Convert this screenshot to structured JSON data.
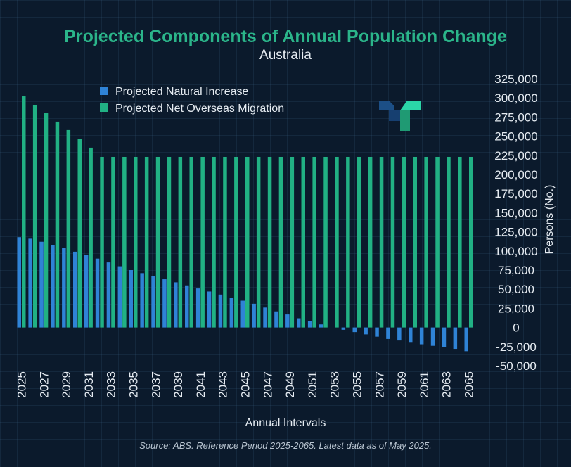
{
  "colors": {
    "natural_increase": "#2f83d6",
    "net_overseas_migration": "#21b184",
    "title": "#2bb58a",
    "background": "#0b1a2c",
    "text": "#e6ecf2"
  },
  "chart_data": {
    "type": "bar",
    "title": "Projected Components of Annual Population Change",
    "subtitle": "Australia",
    "xlabel": "Annual Intervals",
    "ylabel": "Persons (No.)",
    "ylim": [
      -50000,
      325000
    ],
    "yticks": [
      325000,
      300000,
      275000,
      250000,
      225000,
      200000,
      175000,
      150000,
      125000,
      100000,
      75000,
      50000,
      25000,
      0,
      -25000,
      -50000
    ],
    "ytick_labels": [
      "325,000",
      "300,000",
      "275,000",
      "250,000",
      "225,000",
      "200,000",
      "175,000",
      "150,000",
      "125,000",
      "100,000",
      "75,000",
      "50,000",
      "25,000",
      "0",
      "-25,000",
      "-50,000"
    ],
    "categories": [
      2025,
      2026,
      2027,
      2028,
      2029,
      2030,
      2031,
      2032,
      2033,
      2034,
      2035,
      2036,
      2037,
      2038,
      2039,
      2040,
      2041,
      2042,
      2043,
      2044,
      2045,
      2046,
      2047,
      2048,
      2049,
      2050,
      2051,
      2052,
      2053,
      2054,
      2055,
      2056,
      2057,
      2058,
      2059,
      2060,
      2061,
      2062,
      2063,
      2064,
      2065
    ],
    "xtick_labels": [
      "2025",
      "2027",
      "2029",
      "2031",
      "2033",
      "2035",
      "2037",
      "2039",
      "2041",
      "2043",
      "2045",
      "2047",
      "2049",
      "2051",
      "2053",
      "2055",
      "2057",
      "2059",
      "2061",
      "2063",
      "2065"
    ],
    "series": [
      {
        "name": "Projected Natural Increase",
        "values": [
          118000,
          116000,
          112000,
          108000,
          104000,
          99000,
          95000,
          90000,
          85000,
          80000,
          75000,
          71000,
          67000,
          63000,
          59000,
          55000,
          51000,
          47000,
          43000,
          39000,
          35000,
          31000,
          26000,
          21000,
          17000,
          12000,
          8000,
          4000,
          0,
          -3000,
          -6000,
          -9000,
          -12000,
          -15000,
          -17000,
          -19000,
          -22000,
          -24000,
          -26000,
          -28000,
          -31000
        ]
      },
      {
        "name": "Projected Net Overseas Migration",
        "values": [
          302000,
          291000,
          280000,
          269000,
          258000,
          246000,
          235000,
          223000,
          223000,
          223000,
          223000,
          223000,
          223000,
          223000,
          223000,
          223000,
          223000,
          223000,
          223000,
          223000,
          223000,
          223000,
          223000,
          223000,
          223000,
          223000,
          223000,
          223000,
          223000,
          223000,
          223000,
          223000,
          223000,
          223000,
          223000,
          223000,
          223000,
          223000,
          223000,
          223000,
          223000
        ]
      }
    ],
    "source": "Source: ABS. Reference Period 2025-2065. Latest data as of May 2025."
  }
}
